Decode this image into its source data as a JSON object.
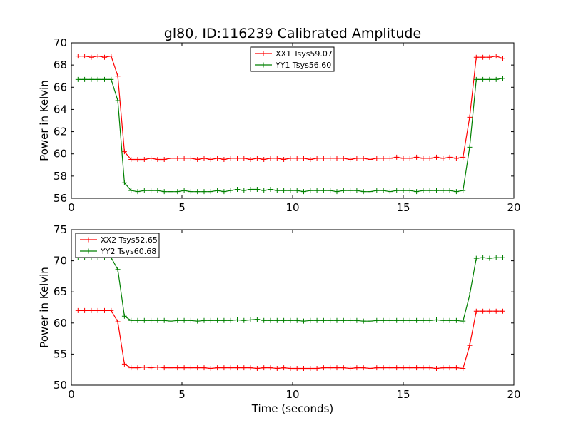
{
  "figure": {
    "title": "gl80, ID:116239 Calibrated Amplitude",
    "xlabel": "Time (seconds)"
  },
  "chart_data": [
    {
      "type": "line",
      "title": "gl80, ID:116239 Calibrated Amplitude",
      "xlabel": "",
      "ylabel": "Power in Kelvin",
      "xlim": [
        0,
        20
      ],
      "ylim": [
        56,
        70
      ],
      "xticks": [
        0,
        5,
        10,
        15,
        20
      ],
      "yticks": [
        56,
        58,
        60,
        62,
        64,
        66,
        68,
        70
      ],
      "grid": false,
      "legend_position": "top-center",
      "x": [
        0.3,
        0.6,
        0.9,
        1.2,
        1.5,
        1.8,
        2.1,
        2.4,
        2.7,
        3.0,
        3.3,
        3.6,
        3.9,
        4.2,
        4.5,
        4.8,
        5.1,
        5.4,
        5.7,
        6.0,
        6.3,
        6.6,
        6.9,
        7.2,
        7.5,
        7.8,
        8.1,
        8.4,
        8.7,
        9.0,
        9.3,
        9.6,
        9.9,
        10.2,
        10.5,
        10.8,
        11.1,
        11.4,
        11.7,
        12.0,
        12.3,
        12.6,
        12.9,
        13.2,
        13.5,
        13.8,
        14.1,
        14.4,
        14.7,
        15.0,
        15.3,
        15.6,
        15.9,
        16.2,
        16.5,
        16.8,
        17.1,
        17.4,
        17.7,
        18.0,
        18.3,
        18.6,
        18.9,
        19.2,
        19.5
      ],
      "series": [
        {
          "name": "XX1 Tsys59.07",
          "color": "#ff0000",
          "values": [
            68.8,
            68.8,
            68.7,
            68.8,
            68.7,
            68.8,
            67.0,
            60.2,
            59.5,
            59.5,
            59.5,
            59.6,
            59.5,
            59.5,
            59.6,
            59.6,
            59.6,
            59.6,
            59.5,
            59.6,
            59.5,
            59.6,
            59.5,
            59.6,
            59.6,
            59.6,
            59.5,
            59.6,
            59.5,
            59.6,
            59.6,
            59.5,
            59.6,
            59.6,
            59.6,
            59.5,
            59.6,
            59.6,
            59.6,
            59.6,
            59.6,
            59.5,
            59.6,
            59.6,
            59.5,
            59.6,
            59.6,
            59.6,
            59.7,
            59.6,
            59.6,
            59.7,
            59.6,
            59.6,
            59.7,
            59.6,
            59.7,
            59.6,
            59.7,
            63.3,
            68.7,
            68.7,
            68.7,
            68.8,
            68.6
          ]
        },
        {
          "name": "YY1 Tsys56.60",
          "color": "#008000",
          "values": [
            66.7,
            66.7,
            66.7,
            66.7,
            66.7,
            66.7,
            64.8,
            57.4,
            56.7,
            56.6,
            56.7,
            56.7,
            56.7,
            56.6,
            56.6,
            56.6,
            56.7,
            56.6,
            56.6,
            56.6,
            56.6,
            56.7,
            56.6,
            56.7,
            56.8,
            56.7,
            56.8,
            56.8,
            56.7,
            56.8,
            56.7,
            56.7,
            56.7,
            56.7,
            56.6,
            56.7,
            56.7,
            56.7,
            56.7,
            56.6,
            56.7,
            56.7,
            56.7,
            56.6,
            56.6,
            56.7,
            56.7,
            56.6,
            56.7,
            56.7,
            56.7,
            56.6,
            56.7,
            56.7,
            56.7,
            56.7,
            56.7,
            56.6,
            56.7,
            60.6,
            66.7,
            66.7,
            66.7,
            66.7,
            66.8
          ]
        }
      ]
    },
    {
      "type": "line",
      "title": "",
      "xlabel": "Time (seconds)",
      "ylabel": "Power in Kelvin",
      "xlim": [
        0,
        20
      ],
      "ylim": [
        50,
        75
      ],
      "xticks": [
        0,
        5,
        10,
        15,
        20
      ],
      "yticks": [
        50,
        55,
        60,
        65,
        70,
        75
      ],
      "grid": false,
      "legend_position": "top-left",
      "x": [
        0.3,
        0.6,
        0.9,
        1.2,
        1.5,
        1.8,
        2.1,
        2.4,
        2.7,
        3.0,
        3.3,
        3.6,
        3.9,
        4.2,
        4.5,
        4.8,
        5.1,
        5.4,
        5.7,
        6.0,
        6.3,
        6.6,
        6.9,
        7.2,
        7.5,
        7.8,
        8.1,
        8.4,
        8.7,
        9.0,
        9.3,
        9.6,
        9.9,
        10.2,
        10.5,
        10.8,
        11.1,
        11.4,
        11.7,
        12.0,
        12.3,
        12.6,
        12.9,
        13.2,
        13.5,
        13.8,
        14.1,
        14.4,
        14.7,
        15.0,
        15.3,
        15.6,
        15.9,
        16.2,
        16.5,
        16.8,
        17.1,
        17.4,
        17.7,
        18.0,
        18.3,
        18.6,
        18.9,
        19.2,
        19.5
      ],
      "series": [
        {
          "name": "XX2 Tsys52.65",
          "color": "#ff0000",
          "values": [
            62.0,
            62.0,
            62.0,
            62.0,
            62.0,
            62.0,
            60.2,
            53.4,
            52.8,
            52.8,
            52.9,
            52.8,
            52.9,
            52.8,
            52.8,
            52.8,
            52.8,
            52.8,
            52.8,
            52.8,
            52.7,
            52.8,
            52.8,
            52.8,
            52.8,
            52.8,
            52.8,
            52.7,
            52.8,
            52.8,
            52.7,
            52.8,
            52.7,
            52.7,
            52.7,
            52.7,
            52.7,
            52.8,
            52.8,
            52.8,
            52.8,
            52.7,
            52.8,
            52.8,
            52.7,
            52.8,
            52.8,
            52.8,
            52.8,
            52.8,
            52.8,
            52.8,
            52.8,
            52.8,
            52.7,
            52.8,
            52.8,
            52.8,
            52.7,
            56.4,
            61.9,
            61.9,
            61.9,
            61.9,
            61.9
          ]
        },
        {
          "name": "YY2 Tsys60.68",
          "color": "#008000",
          "values": [
            70.5,
            70.5,
            70.5,
            70.5,
            70.5,
            70.5,
            68.6,
            61.1,
            60.4,
            60.4,
            60.4,
            60.4,
            60.4,
            60.4,
            60.3,
            60.4,
            60.4,
            60.4,
            60.3,
            60.4,
            60.4,
            60.4,
            60.4,
            60.4,
            60.5,
            60.4,
            60.5,
            60.6,
            60.4,
            60.4,
            60.4,
            60.4,
            60.4,
            60.4,
            60.3,
            60.4,
            60.4,
            60.4,
            60.4,
            60.4,
            60.4,
            60.4,
            60.4,
            60.3,
            60.3,
            60.4,
            60.4,
            60.4,
            60.4,
            60.4,
            60.4,
            60.4,
            60.4,
            60.4,
            60.5,
            60.4,
            60.4,
            60.4,
            60.3,
            64.5,
            70.4,
            70.5,
            70.4,
            70.5,
            70.5
          ]
        }
      ]
    }
  ]
}
